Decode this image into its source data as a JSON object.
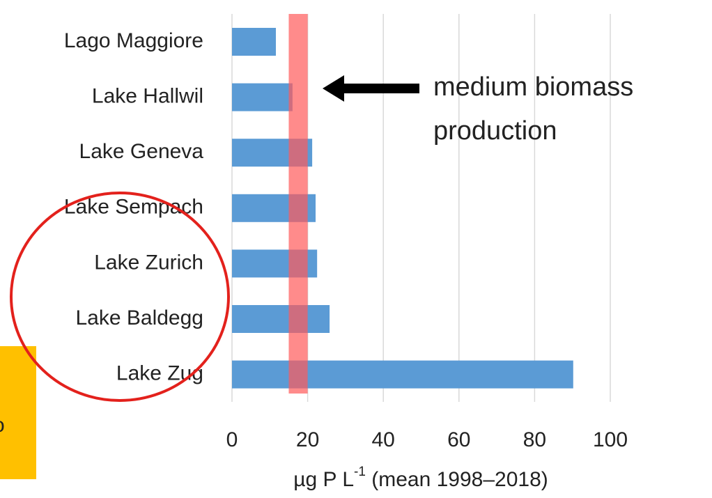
{
  "chart_data": {
    "type": "barh",
    "categories": [
      "Lago Maggiore",
      "Lake Hallwil",
      "Lake Geneva",
      "Lake Sempach",
      "Lake Zurich",
      "Lake Baldegg",
      "Lake Zug"
    ],
    "values": [
      11.6,
      16,
      21.2,
      22.1,
      22.5,
      25.8,
      90.2
    ],
    "color": "#5b9bd5",
    "xlim": [
      0,
      100
    ],
    "xticks": [
      0,
      20,
      40,
      60,
      80,
      100
    ],
    "grid": true,
    "xlabel": {
      "base": "µg P L",
      "sup": "-1",
      "rest": " (mean 1998–2018)"
    },
    "band": {
      "range": [
        15,
        20
      ],
      "color": "#ff5a5a"
    },
    "annotation": [
      "medium biomass",
      "production"
    ],
    "side_note": "o"
  }
}
